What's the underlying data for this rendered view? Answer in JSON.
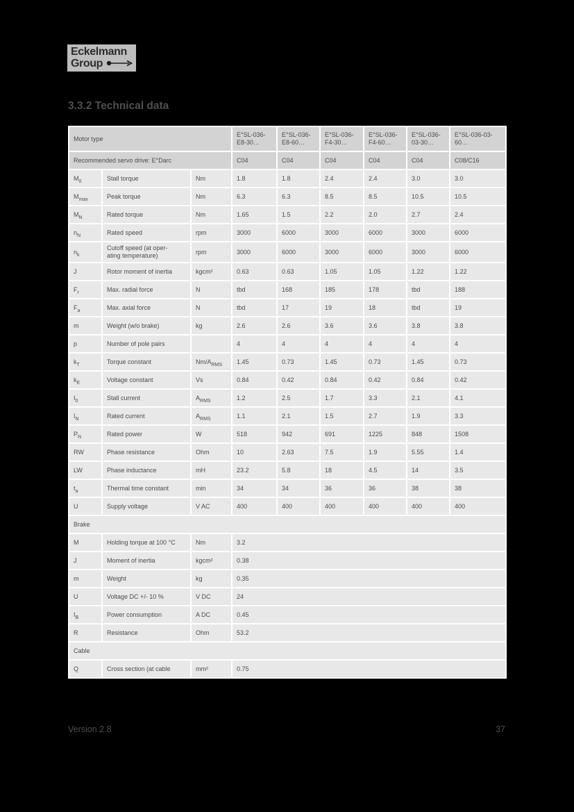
{
  "colors": {
    "page_bg": "#000000",
    "grid_line": "#ffffff",
    "header_row_bg": "#d3d3d3",
    "data_row_bg": "#e8e8e8",
    "table_text": "#4b4b4b",
    "page_text": "#4f4f4f",
    "logo_bg": "#bdbdbd"
  },
  "logo": {
    "line1": "Eckelmann",
    "line2": "Group"
  },
  "heading": "3.3.2 Technical data",
  "footer": {
    "version": "Version 2.8",
    "page_number": "37"
  },
  "table": {
    "header": {
      "motor_type_label": "Motor type",
      "columns": [
        "E°SL-036-\nE8-30…",
        "E°SL-036-\nE8-60…",
        "E°SL-036-\nF4-30…",
        "E°SL-036-\nF4-60…",
        "E°SL-036-\n03-30…",
        "E°SL-036-03-\n60…"
      ]
    },
    "recommended": {
      "label": "Recommended servo drive: E°Darc",
      "values": [
        "C04",
        "C04",
        "C04",
        "C04",
        "C04",
        "C08/C16"
      ]
    },
    "rows": [
      {
        "sym": "M",
        "sub": "0",
        "label": "Stall torque",
        "unit": "Nm",
        "values": [
          "1.8",
          "1.8",
          "2.4",
          "2.4",
          "3.0",
          "3.0"
        ]
      },
      {
        "sym": "M",
        "sub": "max",
        "label": "Peak torque",
        "unit": "Nm",
        "values": [
          "6.3",
          "6.3",
          "8.5",
          "8.5",
          "10.5",
          "10.5"
        ]
      },
      {
        "sym": "M",
        "sub": "N",
        "label": "Rated torque",
        "unit": "Nm",
        "values": [
          "1.65",
          "1.5",
          "2.2",
          "2.0",
          "2.7",
          "2.4"
        ]
      },
      {
        "sym": "n",
        "sub": "N",
        "label": "Rated speed",
        "unit": "rpm",
        "values": [
          "3000",
          "6000",
          "3000",
          "6000",
          "3000",
          "6000"
        ]
      },
      {
        "sym": "n",
        "sub": "k",
        "label": "Cutoff speed (at oper-\nating temperature)",
        "unit": "rpm",
        "values": [
          "3000",
          "6000",
          "3000",
          "6000",
          "3000",
          "6000"
        ]
      },
      {
        "sym": "J",
        "sub": "",
        "label": "Rotor moment of inertia",
        "unit": "kgcm²",
        "values": [
          "0.63",
          "0.63",
          "1.05",
          "1.05",
          "1.22",
          "1.22"
        ]
      },
      {
        "sym": "F",
        "sub": "r",
        "label": "Max. radial force",
        "unit": "N",
        "values": [
          "tbd",
          "168",
          "185",
          "178",
          "tbd",
          "188"
        ]
      },
      {
        "sym": "F",
        "sub": "a",
        "label": "Max. axial force",
        "unit": "N",
        "values": [
          "tbd",
          "17",
          "19",
          "18",
          "tbd",
          "19"
        ]
      },
      {
        "sym": "m",
        "sub": "",
        "label": "Weight (w/o brake)",
        "unit": "kg",
        "values": [
          "2.6",
          "2.6",
          "3.6",
          "3.6",
          "3.8",
          "3.8"
        ]
      },
      {
        "sym": "p",
        "sub": "",
        "label": "Number of pole pairs",
        "unit": "",
        "values": [
          "4",
          "4",
          "4",
          "4",
          "4",
          "4"
        ]
      },
      {
        "sym": "k",
        "sub": "T",
        "label": "Torque constant",
        "unit": "Nm/A",
        "unit_sub": "RMS",
        "values": [
          "1.45",
          "0.73",
          "1.45",
          "0.73",
          "1.45",
          "0.73"
        ]
      },
      {
        "sym": "k",
        "sub": "E",
        "label": "Voltage constant",
        "unit": "Vs",
        "values": [
          "0.84",
          "0.42",
          "0.84",
          "0.42",
          "0.84",
          "0.42"
        ]
      },
      {
        "sym": "I",
        "sub": "0",
        "label": "Stall current",
        "unit": "A",
        "unit_sub": "RMS",
        "values": [
          "1.2",
          "2.5",
          "1.7",
          "3.3",
          "2.1",
          "4.1"
        ]
      },
      {
        "sym": "I",
        "sub": "N",
        "label": "Rated current",
        "unit": "A",
        "unit_sub": "RMS",
        "values": [
          "1.1",
          "2.1",
          "1.5",
          "2.7",
          "1.9",
          "3.3"
        ]
      },
      {
        "sym": "P",
        "sub": "N",
        "label": "Rated power",
        "unit": "W",
        "values": [
          "518",
          "942",
          "691",
          "1225",
          "848",
          "1508"
        ]
      },
      {
        "sym": "RW",
        "sub": "",
        "label": "Phase resistance",
        "unit": "Ohm",
        "values": [
          "10",
          "2.63",
          "7.5",
          "1.9",
          "5.55",
          "1.4"
        ]
      },
      {
        "sym": "LW",
        "sub": "",
        "label": "Phase inductance",
        "unit": "mH",
        "values": [
          "23.2",
          "5.8",
          "18",
          "4.5",
          "14",
          "3.5"
        ]
      },
      {
        "sym": "t",
        "sub": "a",
        "label": "Thermal time constant",
        "unit": "min",
        "values": [
          "34",
          "34",
          "36",
          "36",
          "38",
          "38"
        ]
      },
      {
        "sym": "U",
        "sub": "",
        "label": "Supply voltage",
        "unit": "V AC",
        "values": [
          "400",
          "400",
          "400",
          "400",
          "400",
          "400"
        ]
      }
    ],
    "sections": [
      {
        "title": "Brake",
        "rows": [
          {
            "sym": "M",
            "sub": "",
            "label": "Holding torque at 100 °C",
            "unit": "Nm",
            "value": "3.2"
          },
          {
            "sym": "J",
            "sub": "",
            "label": "Moment of inertia",
            "unit": "kgcm²",
            "value": "0.38"
          },
          {
            "sym": "m",
            "sub": "",
            "label": "Weight",
            "unit": "kg",
            "value": "0.35"
          },
          {
            "sym": "U",
            "sub": "",
            "label": "Voltage DC +/- 10 %",
            "unit": "V DC",
            "value": "24"
          },
          {
            "sym": "I",
            "sub": "B",
            "label": "Power consumption",
            "unit": "A DC",
            "value": "0.45"
          },
          {
            "sym": "R",
            "sub": "",
            "label": "Resistance",
            "unit": "Ohm",
            "value": "53.2"
          }
        ]
      },
      {
        "title": "Cable",
        "rows": [
          {
            "sym": "Q",
            "sub": "",
            "label": "Cross section (at cable",
            "unit": "mm²",
            "value": "0.75"
          }
        ]
      }
    ]
  }
}
